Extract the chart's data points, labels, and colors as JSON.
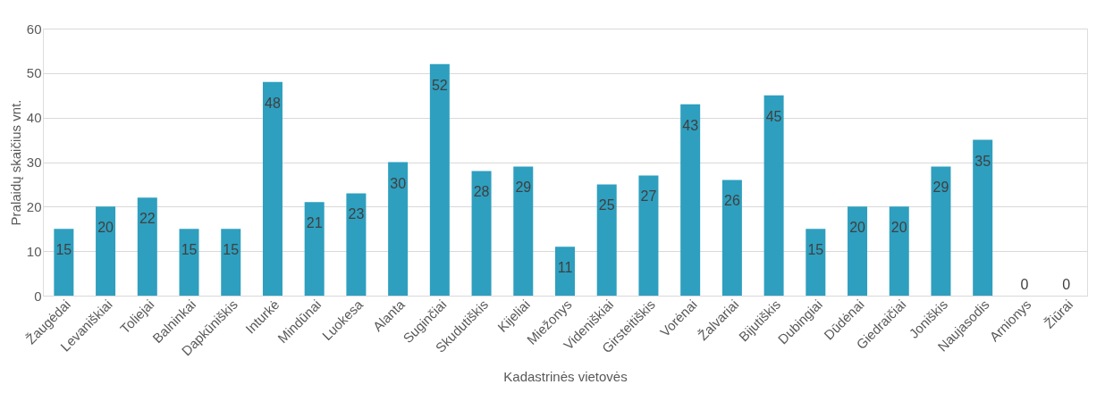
{
  "chart_data": {
    "type": "bar",
    "xlabel": "Kadastrinės vietovės",
    "ylabel": "Pralaidų skaičius vnt.",
    "categories": [
      "Žaugėdai",
      "Levaniškiai",
      "Toliejai",
      "Balninkai",
      "Dapkūniškis",
      "Inturkė",
      "Mindūnai",
      "Luokesa",
      "Alanta",
      "Suginčiai",
      "Skudutiškis",
      "Kijeliai",
      "Miežonys",
      "Videniškiai",
      "Girsteitiškis",
      "Vorėnai",
      "Žalvariai",
      "Bijutiškis",
      "Dubingiai",
      "Dūdėnai",
      "Giedraičiai",
      "Joniškis",
      "Naujasodis",
      "Arnionys",
      "Žiūrai"
    ],
    "values": [
      15,
      20,
      22,
      15,
      15,
      48,
      21,
      23,
      30,
      52,
      28,
      29,
      11,
      25,
      27,
      43,
      26,
      45,
      15,
      20,
      20,
      29,
      35,
      0,
      0
    ],
    "color": "#2e9fbf",
    "ylim": [
      0,
      60
    ],
    "yticks": [
      0,
      10,
      20,
      30,
      40,
      50,
      60
    ],
    "grid": "y",
    "data_labels": true
  }
}
